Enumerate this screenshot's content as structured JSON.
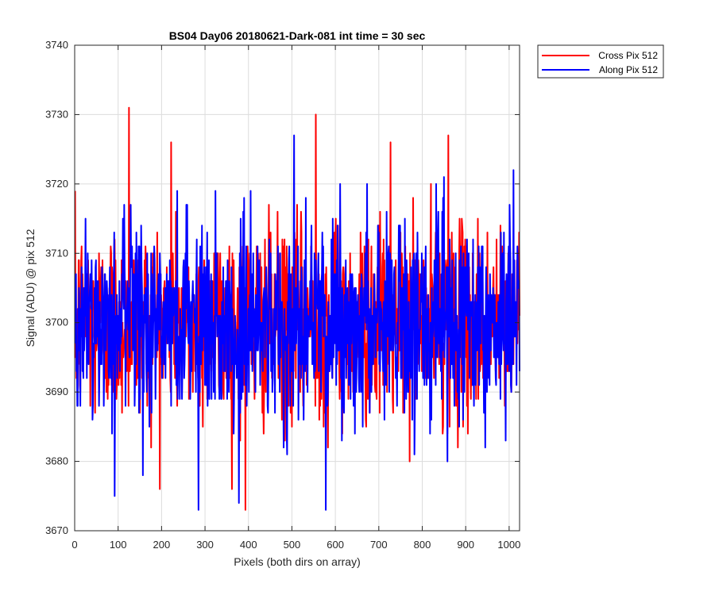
{
  "chart_data": {
    "type": "line",
    "title": "BS04 Day06 20180621-Dark-081 int time = 30 sec",
    "xlabel": "Pixels (both dirs on array)",
    "ylabel": "Signal (ADU) @ pix 512",
    "xlim": [
      0,
      1024
    ],
    "ylim": [
      3670,
      3740
    ],
    "x_ticks": [
      0,
      100,
      200,
      300,
      400,
      500,
      600,
      700,
      800,
      900,
      1000
    ],
    "y_ticks": [
      3670,
      3680,
      3690,
      3700,
      3710,
      3720,
      3730,
      3740
    ],
    "grid": true,
    "legend_position": "outside-top-right",
    "series": [
      {
        "name": "Cross Pix 512",
        "color": "#ff0000",
        "x_start": 1,
        "x_step": 1,
        "count": 1024,
        "center": 3700,
        "noise_sigma": 7,
        "peaks": [
          {
            "x": 125,
            "y": 3731
          },
          {
            "x": 222,
            "y": 3726
          },
          {
            "x": 393,
            "y": 3673
          },
          {
            "x": 555,
            "y": 3730
          },
          {
            "x": 727,
            "y": 3726
          },
          {
            "x": 860,
            "y": 3727
          }
        ]
      },
      {
        "name": "Along Pix 512",
        "color": "#0000ff",
        "x_start": 1,
        "x_step": 1,
        "count": 1024,
        "center": 3700,
        "noise_sigma": 7,
        "peaks": [
          {
            "x": 92,
            "y": 3675
          },
          {
            "x": 285,
            "y": 3673
          },
          {
            "x": 378,
            "y": 3674
          },
          {
            "x": 505,
            "y": 3727
          },
          {
            "x": 578,
            "y": 3673
          },
          {
            "x": 1010,
            "y": 3722
          }
        ]
      }
    ]
  }
}
